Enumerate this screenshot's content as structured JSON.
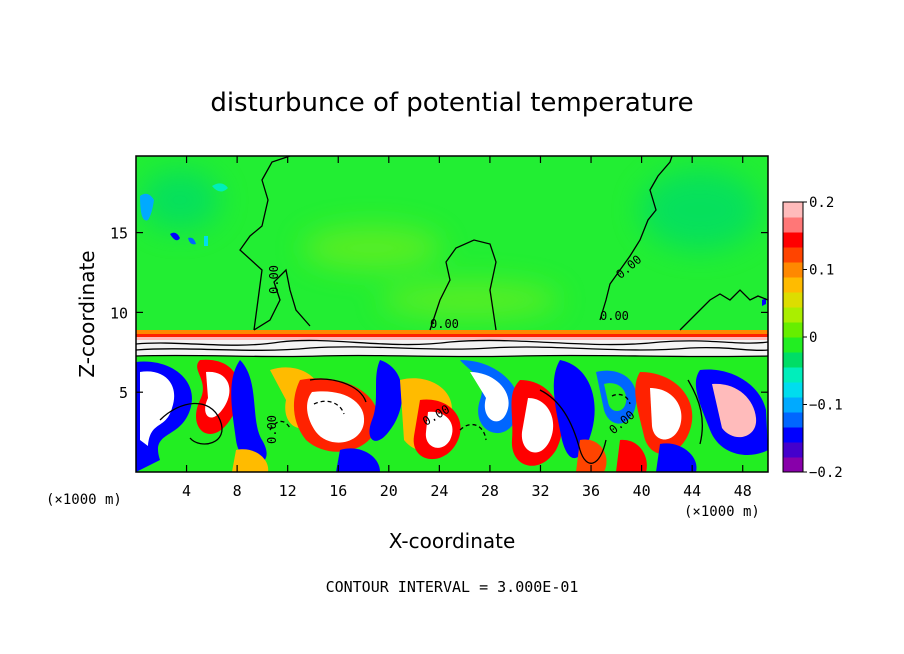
{
  "chart_data": {
    "type": "heatmap",
    "title": "disturbunce of potential temperature",
    "xlabel": "X-coordinate",
    "ylabel": "Z-coordinate",
    "x_unit_left": "(×1000 m)",
    "x_unit_right": "(×1000 m)",
    "xlim": [
      0,
      50
    ],
    "ylim": [
      0,
      19.8
    ],
    "x_ticks": [
      "4",
      "8",
      "12",
      "16",
      "20",
      "24",
      "28",
      "32",
      "36",
      "40",
      "44",
      "48"
    ],
    "y_ticks": [
      "5",
      "10",
      "15"
    ],
    "colorbar": {
      "min": -0.2,
      "max": 0.2,
      "ticks": [
        "0.2",
        "0.1",
        "0",
        "−0.1",
        "−0.2"
      ],
      "colors": [
        "#8800aa",
        "#4400cc",
        "#0000ff",
        "#0066ff",
        "#00aaff",
        "#00ddee",
        "#00eebb",
        "#00dd66",
        "#22ee22",
        "#66ee00",
        "#aaee00",
        "#dddd00",
        "#ffbb00",
        "#ff8800",
        "#ff4400",
        "#ff0000",
        "#ff7777",
        "#ffbbbb"
      ]
    },
    "contour_labels": [
      "0.00",
      "0.00",
      "0.00",
      "0.00",
      "0.00",
      "0.00",
      "0.00"
    ],
    "footer": "CONTOUR INTERVAL = 3.000E-01"
  }
}
